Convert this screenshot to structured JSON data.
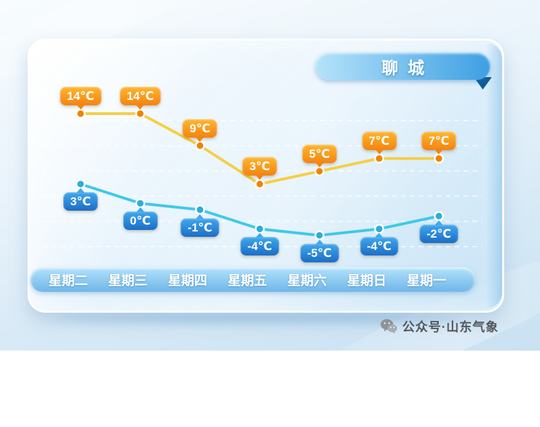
{
  "city_label": "聊城",
  "watermark": {
    "icon": "wechat-icon",
    "text": "公众号·山东气象"
  },
  "colors": {
    "title_pill_gradient": [
      "#B5E3FA",
      "#3D9FE3"
    ],
    "day_bar_gradient": [
      "#B3E2FB",
      "#6FB6E8"
    ],
    "ribbon_fold": "#0E5B97",
    "card_border": "#FFFFFF",
    "background": "#E4F0F9",
    "gridline": "#FFFFFF"
  },
  "chart_data": {
    "type": "line",
    "title": "聊城",
    "categories": [
      "星期二",
      "星期三",
      "星期四",
      "星期五",
      "星期六",
      "星期日",
      "星期一"
    ],
    "series": [
      {
        "name": "high",
        "values": [
          14,
          14,
          9,
          3,
          5,
          7,
          7
        ],
        "labels": [
          "14℃",
          "14℃",
          "9℃",
          "3℃",
          "5℃",
          "7℃",
          "7℃"
        ],
        "line_color": "#F6CE45",
        "point_color": "#F08300",
        "badge_gradient": [
          "#FFB62E",
          "#F28411"
        ],
        "label_position": "above"
      },
      {
        "name": "low",
        "values": [
          3,
          0,
          -1,
          -4,
          -5,
          -4,
          -2
        ],
        "labels": [
          "3℃",
          "0℃",
          "-1℃",
          "-4℃",
          "-5℃",
          "-4℃",
          "-2℃"
        ],
        "line_color": "#3EC9E9",
        "point_color": "#2BAED6",
        "badge_gradient": [
          "#41A8EC",
          "#1B6DC6"
        ],
        "label_position": "below"
      }
    ],
    "unit": "℃",
    "ylim": [
      -8,
      17
    ],
    "grid": "horizontal-dashed",
    "legend": "none"
  }
}
